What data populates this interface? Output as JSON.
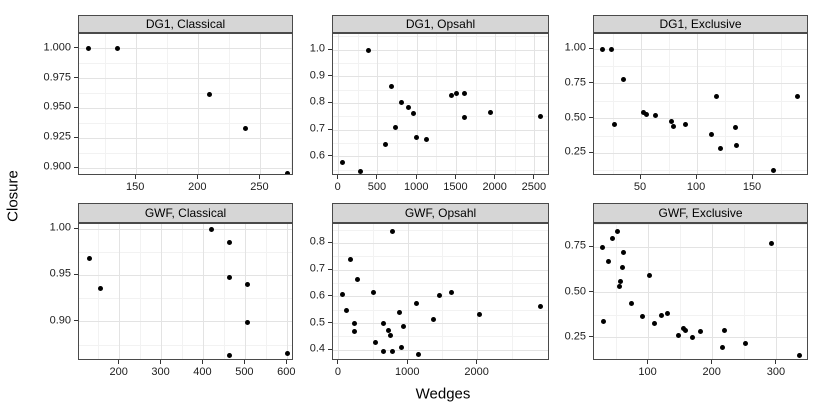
{
  "figure": {
    "colors": {
      "background": "#ffffff",
      "strip_bg": "#d6d6d6",
      "strip_border": "#4a4a4a",
      "panel_border": "#4a4a4a",
      "grid_major": "#e3e3e3",
      "grid_minor": "#f2f2f2",
      "point": "#000000",
      "tick": "#333333",
      "tick_label": "#1c1c1c",
      "axis_title": "#000000"
    }
  },
  "chart_data": {
    "type": "scatter",
    "xlabel": "Wedges",
    "ylabel": "Closure",
    "legend": "none",
    "grid": "major and minor, light gray",
    "facet_rows": [
      "DG1",
      "GWF"
    ],
    "facet_cols": [
      "Classical",
      "Opsahl",
      "Exclusive"
    ],
    "facets": [
      {
        "title": "DG1, Classical",
        "row": 0,
        "col": 0,
        "x_range": [
          104,
          277
        ],
        "y_range": [
          0.8935,
          1.0122
        ],
        "x_ticks": {
          "values": [
            150,
            200,
            250
          ],
          "labels": [
            "150",
            "200",
            "250"
          ]
        },
        "y_ticks": {
          "values": [
            1.0,
            0.975,
            0.95,
            0.925,
            0.9
          ],
          "labels": [
            "1.000",
            "0.975",
            "0.950",
            "0.925",
            "0.900"
          ]
        },
        "points": [
          [
            112,
            1.0
          ],
          [
            135,
            1.0
          ],
          [
            209,
            0.962
          ],
          [
            238,
            0.933
          ],
          [
            272,
            0.896
          ]
        ]
      },
      {
        "title": "DG1, Opsahl",
        "row": 0,
        "col": 1,
        "x_range": [
          -73,
          2692
        ],
        "y_range": [
          0.528,
          1.06
        ],
        "x_ticks": {
          "values": [
            0,
            500,
            1000,
            1500,
            2000,
            2500
          ],
          "labels": [
            "0",
            "500",
            "1000",
            "1500",
            "2000",
            "2500"
          ]
        },
        "y_ticks": {
          "values": [
            1.0,
            0.9,
            0.8,
            0.7,
            0.6
          ],
          "labels": [
            "1.0",
            "0.9",
            "0.8",
            "0.7",
            "0.6"
          ]
        },
        "points": [
          [
            42,
            0.58
          ],
          [
            275,
            0.545
          ],
          [
            380,
            1.0
          ],
          [
            593,
            0.645
          ],
          [
            669,
            0.865
          ],
          [
            720,
            0.71
          ],
          [
            805,
            0.805
          ],
          [
            885,
            0.785
          ],
          [
            950,
            0.762
          ],
          [
            996,
            0.672
          ],
          [
            1124,
            0.665
          ],
          [
            1441,
            0.83
          ],
          [
            1505,
            0.837
          ],
          [
            1598,
            0.838
          ],
          [
            1598,
            0.746
          ],
          [
            1929,
            0.766
          ],
          [
            2574,
            0.751
          ]
        ]
      },
      {
        "title": "DG1, Exclusive",
        "row": 0,
        "col": 2,
        "x_range": [
          8,
          200
        ],
        "y_range": [
          0.087,
          1.11
        ],
        "x_ticks": {
          "values": [
            50,
            100,
            150
          ],
          "labels": [
            "50",
            "100",
            "150"
          ]
        },
        "y_ticks": {
          "values": [
            1.0,
            0.75,
            0.5,
            0.25
          ],
          "labels": [
            "1.00",
            "0.75",
            "0.50",
            "0.25"
          ]
        },
        "points": [
          [
            16,
            1.0
          ],
          [
            24,
            1.0
          ],
          [
            26,
            0.46
          ],
          [
            34,
            0.78
          ],
          [
            52,
            0.545
          ],
          [
            55,
            0.53
          ],
          [
            63,
            0.52
          ],
          [
            77,
            0.48
          ],
          [
            79,
            0.445
          ],
          [
            90,
            0.455
          ],
          [
            113,
            0.385
          ],
          [
            117,
            0.66
          ],
          [
            121,
            0.285
          ],
          [
            134,
            0.435
          ],
          [
            135,
            0.31
          ],
          [
            168,
            0.13
          ],
          [
            190,
            0.66
          ]
        ]
      },
      {
        "title": "GWF, Classical",
        "row": 1,
        "col": 0,
        "x_range": [
          103,
          616
        ],
        "y_range": [
          0.858,
          1.0054
        ],
        "x_ticks": {
          "values": [
            200,
            300,
            400,
            500,
            600
          ],
          "labels": [
            "200",
            "300",
            "400",
            "500",
            "600"
          ]
        },
        "y_ticks": {
          "values": [
            1.0,
            0.95,
            0.9
          ],
          "labels": [
            "1.00",
            "0.95",
            "0.90"
          ]
        },
        "points": [
          [
            129,
            0.968
          ],
          [
            154,
            0.936
          ],
          [
            418,
            1.0
          ],
          [
            462,
            0.986
          ],
          [
            462,
            0.948
          ],
          [
            504,
            0.94
          ],
          [
            506,
            0.899
          ],
          [
            462,
            0.864
          ],
          [
            601,
            0.866
          ]
        ]
      },
      {
        "title": "GWF, Opsahl",
        "row": 1,
        "col": 1,
        "x_range": [
          -86,
          3044
        ],
        "y_range": [
          0.36,
          0.873
        ],
        "x_ticks": {
          "values": [
            0,
            1000,
            2000
          ],
          "labels": [
            "0",
            "1000",
            "2000"
          ]
        },
        "y_ticks": {
          "values": [
            0.8,
            0.7,
            0.6,
            0.5,
            0.4
          ],
          "labels": [
            "0.8",
            "0.7",
            "0.6",
            "0.5",
            "0.4"
          ]
        },
        "points": [
          [
            55,
            0.61
          ],
          [
            105,
            0.55
          ],
          [
            170,
            0.74
          ],
          [
            220,
            0.5
          ],
          [
            225,
            0.47
          ],
          [
            263,
            0.665
          ],
          [
            494,
            0.615
          ],
          [
            527,
            0.43
          ],
          [
            642,
            0.5
          ],
          [
            647,
            0.395
          ],
          [
            714,
            0.475
          ],
          [
            743,
            0.455
          ],
          [
            767,
            0.845
          ],
          [
            767,
            0.395
          ],
          [
            872,
            0.54
          ],
          [
            906,
            0.41
          ],
          [
            930,
            0.49
          ],
          [
            1112,
            0.575
          ],
          [
            1145,
            0.385
          ],
          [
            1367,
            0.515
          ],
          [
            1448,
            0.605
          ],
          [
            1626,
            0.615
          ],
          [
            2033,
            0.535
          ],
          [
            2901,
            0.565
          ]
        ]
      },
      {
        "title": "GWF, Exclusive",
        "row": 1,
        "col": 2,
        "x_range": [
          15,
          350
        ],
        "y_range": [
          0.121,
          0.88
        ],
        "x_ticks": {
          "values": [
            100,
            200,
            300
          ],
          "labels": [
            "100",
            "200",
            "300"
          ]
        },
        "y_ticks": {
          "values": [
            0.75,
            0.5,
            0.25
          ],
          "labels": [
            "0.75",
            "0.50",
            "0.25"
          ]
        },
        "points": [
          [
            28,
            0.75
          ],
          [
            30,
            0.34
          ],
          [
            37,
            0.67
          ],
          [
            44,
            0.8
          ],
          [
            52,
            0.84
          ],
          [
            54,
            0.535
          ],
          [
            57,
            0.56
          ],
          [
            59,
            0.64
          ],
          [
            61,
            0.72
          ],
          [
            73,
            0.44
          ],
          [
            91,
            0.365
          ],
          [
            102,
            0.595
          ],
          [
            110,
            0.33
          ],
          [
            120,
            0.375
          ],
          [
            130,
            0.385
          ],
          [
            146,
            0.26
          ],
          [
            154,
            0.3
          ],
          [
            158,
            0.29
          ],
          [
            168,
            0.25
          ],
          [
            181,
            0.285
          ],
          [
            215,
            0.195
          ],
          [
            218,
            0.29
          ],
          [
            251,
            0.22
          ],
          [
            292,
            0.77
          ],
          [
            335,
            0.15
          ]
        ]
      }
    ]
  }
}
